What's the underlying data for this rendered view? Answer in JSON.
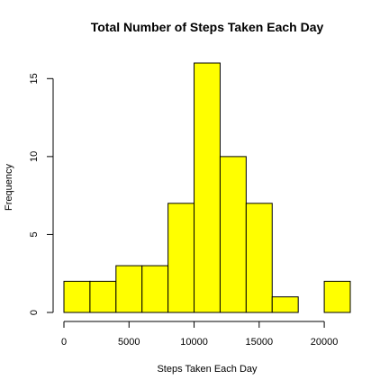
{
  "chart_data": {
    "type": "bar",
    "subtype": "histogram",
    "title": "Total Number of Steps Taken Each Day",
    "xlabel": "Steps Taken Each Day",
    "ylabel": "Frequency",
    "bin_edges": [
      0,
      2000,
      4000,
      6000,
      8000,
      10000,
      12000,
      14000,
      16000,
      18000,
      20000,
      22000
    ],
    "values": [
      2,
      2,
      3,
      3,
      7,
      16,
      10,
      7,
      1,
      0,
      2
    ],
    "xlim": [
      0,
      22000
    ],
    "ylim": [
      0,
      16
    ],
    "x_ticks": [
      0,
      5000,
      10000,
      15000,
      20000
    ],
    "x_tick_labels": [
      "0",
      "5000",
      "10000",
      "15000",
      "20000"
    ],
    "y_ticks": [
      0,
      5,
      10,
      15
    ],
    "y_tick_labels": [
      "0",
      "5",
      "10",
      "15"
    ],
    "bar_color": "#ffff00",
    "bar_border_color": "#000000",
    "grid": false,
    "legend": "none"
  }
}
